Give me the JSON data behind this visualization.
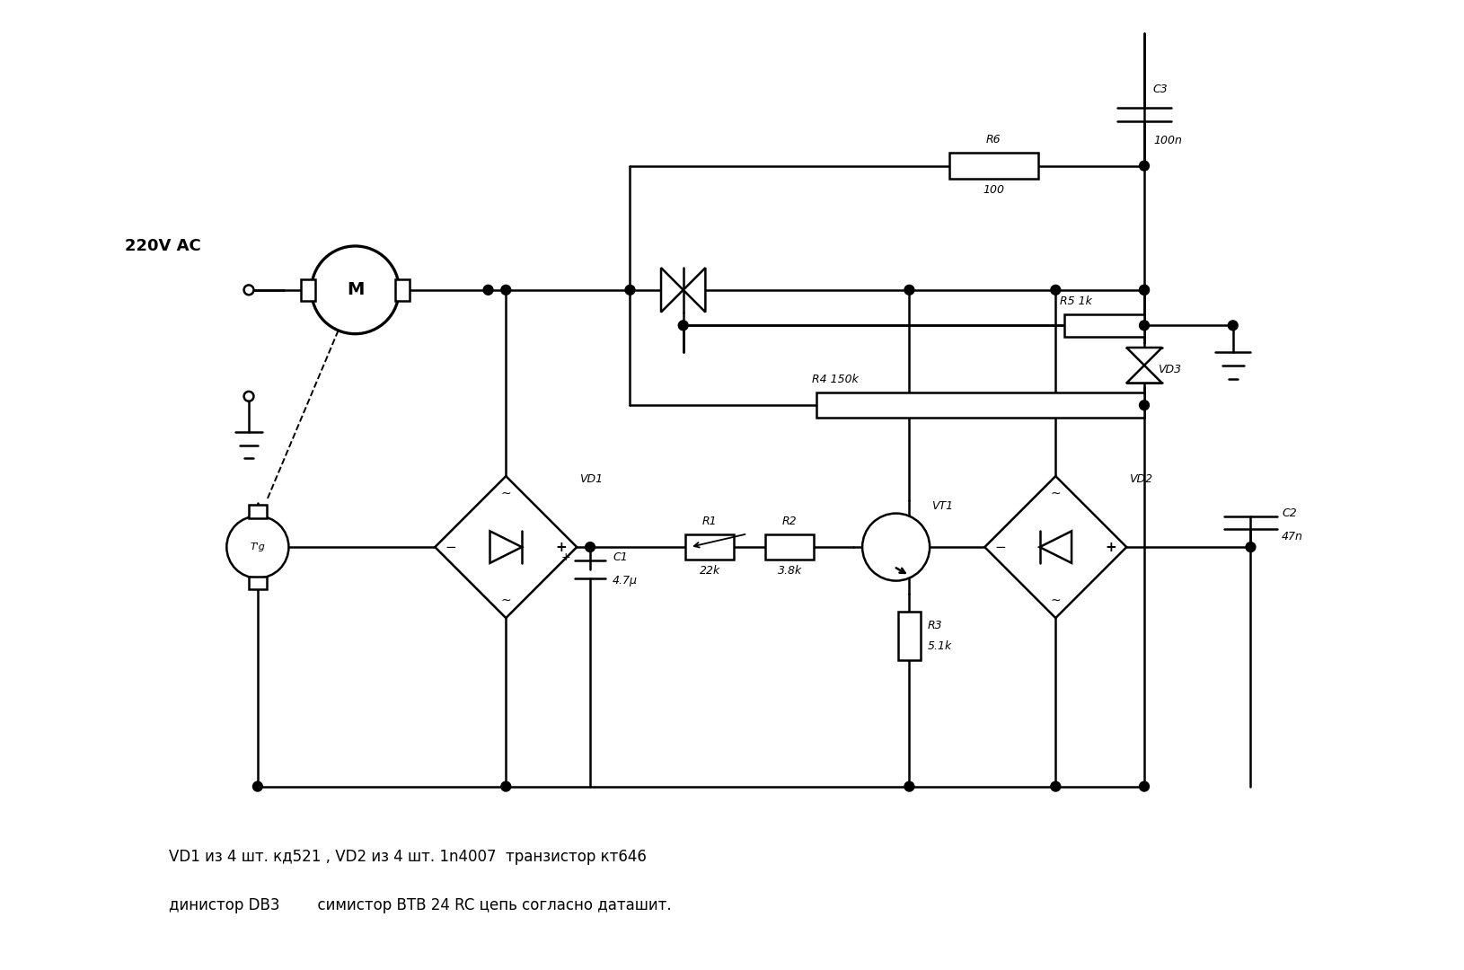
{
  "bg_color": "#ffffff",
  "line_color": "#000000",
  "line_width": 1.8,
  "fig_width": 16.3,
  "fig_height": 10.8,
  "text_color": "#000000",
  "bottom_text_line1": "VD1 из 4 шт. кд521 , VD2 из 4 шт. 1n4007  транзистор кт646",
  "bottom_text_line2": "динистор DB3        симистор BTB 24 RC цепь согласно даташит.",
  "label_220": "220V AC"
}
